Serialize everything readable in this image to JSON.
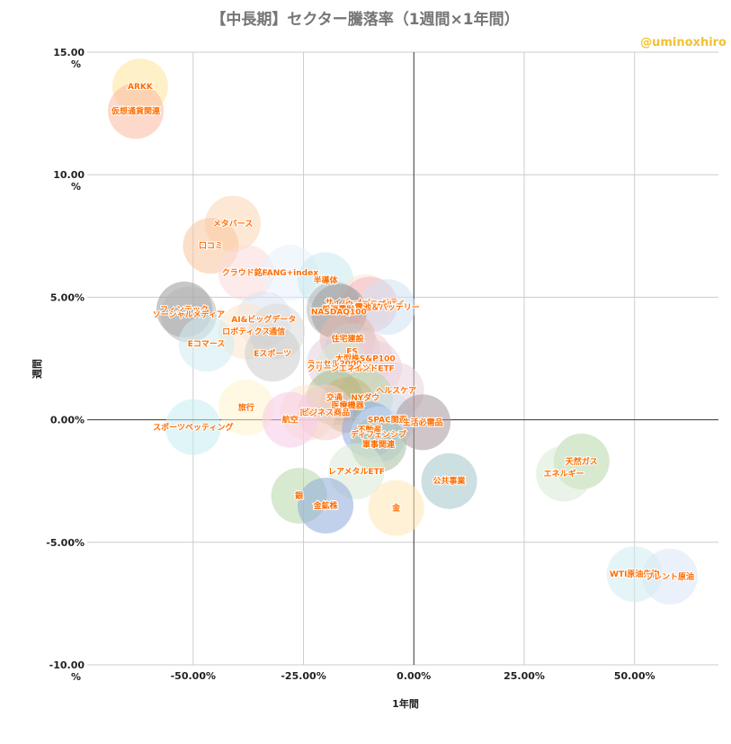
{
  "title": "【中長期】セクター騰落率（1週間×1年間）",
  "handle": "@uminoxhiro",
  "chart_data": {
    "type": "scatter",
    "title": "【中長期】セクター騰落率（1週間×1年間）",
    "xlabel": "1年間",
    "ylabel": "週間",
    "xlim": [
      -0.74,
      0.69
    ],
    "ylim": [
      -0.1,
      0.15
    ],
    "x_ticks": [
      -0.5,
      -0.25,
      0.0,
      0.25,
      0.5
    ],
    "y_ticks": [
      -0.1,
      -0.05,
      0.0,
      0.05,
      0.1,
      0.15
    ],
    "x_tick_labels": [
      "-50.00%",
      "-25.00%",
      "0.00%",
      "25.00%",
      "50.00%"
    ],
    "y_tick_labels": [
      "-10.00\n%",
      "-5.00%",
      "0.00%",
      "5.00%",
      "10.00\n%",
      "15.00\n%"
    ],
    "grid": true,
    "legend": "none",
    "points": [
      {
        "label": "ARKK",
        "x": -0.62,
        "y": 0.136,
        "color": "#ffe599"
      },
      {
        "label": "仮想通貨関連",
        "x": -0.63,
        "y": 0.126,
        "color": "#f9b9a0"
      },
      {
        "label": "メタバース",
        "x": -0.41,
        "y": 0.08,
        "color": "#fcd5b5"
      },
      {
        "label": "口コミ",
        "x": -0.46,
        "y": 0.071,
        "color": "#f9c59a"
      },
      {
        "label": "クラウド銘柄",
        "x": -0.38,
        "y": 0.06,
        "color": "#fadbd8"
      },
      {
        "label": "FANG+index",
        "x": -0.28,
        "y": 0.06,
        "color": "#e8f1fb"
      },
      {
        "label": "半導体",
        "x": -0.2,
        "y": 0.057,
        "color": "#c9e9ec"
      },
      {
        "label": "サイバーセキュリティ",
        "x": -0.11,
        "y": 0.048,
        "color": "#fce5cd"
      },
      {
        "label": "ウェアラブル",
        "x": -0.1,
        "y": 0.047,
        "color": "#f4b7c8"
      },
      {
        "label": "電池＆バッテリー",
        "x": -0.06,
        "y": 0.046,
        "color": "#cfe2f3"
      },
      {
        "label": "一般消費財",
        "x": -0.18,
        "y": 0.045,
        "color": "#b7b7b7"
      },
      {
        "label": "NASDAQ100",
        "x": -0.17,
        "y": 0.044,
        "color": "#9e9e9e"
      },
      {
        "label": "フィンテック",
        "x": -0.52,
        "y": 0.045,
        "color": "#999999"
      },
      {
        "label": "ソーシャルメディア",
        "x": -0.51,
        "y": 0.043,
        "color": "#b7b7b7"
      },
      {
        "label": "AI&ビッグデータ",
        "x": -0.34,
        "y": 0.041,
        "color": "#d9e1f2"
      },
      {
        "label": "ロボティクス",
        "x": -0.38,
        "y": 0.036,
        "color": "#fce5cd"
      },
      {
        "label": "通信",
        "x": -0.31,
        "y": 0.036,
        "color": "#d9d9d9"
      },
      {
        "label": "住宅建設",
        "x": -0.15,
        "y": 0.033,
        "color": "#e6b8af"
      },
      {
        "label": "Eコマース",
        "x": -0.47,
        "y": 0.031,
        "color": "#d0ecf0"
      },
      {
        "label": "Eスポーツ",
        "x": -0.32,
        "y": 0.027,
        "color": "#cccccc"
      },
      {
        "label": "ES",
        "x": -0.14,
        "y": 0.028,
        "color": "#c9c9c9"
      },
      {
        "label": "大型株S&P100",
        "x": -0.11,
        "y": 0.025,
        "color": "#f4cccc"
      },
      {
        "label": "ラッセル2000",
        "x": -0.18,
        "y": 0.023,
        "color": "#e6d0de"
      },
      {
        "label": "クリーンエネルギー",
        "x": -0.16,
        "y": 0.021,
        "color": "#d9ead3"
      },
      {
        "label": "インドETF",
        "x": -0.09,
        "y": 0.021,
        "color": "#ead1dc"
      },
      {
        "label": "ヘルスケア",
        "x": -0.04,
        "y": 0.012,
        "color": "#ead1dc"
      },
      {
        "label": "NYダウ",
        "x": -0.11,
        "y": 0.009,
        "color": "#b6d7a8"
      },
      {
        "label": "交通",
        "x": -0.18,
        "y": 0.009,
        "color": "#a4b98d"
      },
      {
        "label": "医療機器",
        "x": -0.15,
        "y": 0.006,
        "color": "#c9b27a"
      },
      {
        "label": "旅行",
        "x": -0.38,
        "y": 0.005,
        "color": "#fff2cc"
      },
      {
        "label": "鉄鋼",
        "x": -0.24,
        "y": 0.003,
        "color": "#fce5cd"
      },
      {
        "label": "ビジネス商品",
        "x": -0.2,
        "y": 0.003,
        "color": "#f4cccc"
      },
      {
        "label": "SPAC関連",
        "x": -0.06,
        "y": 0.0,
        "color": "#cfe2f3"
      },
      {
        "label": "生活必需品",
        "x": 0.02,
        "y": -0.001,
        "color": "#a7979c"
      },
      {
        "label": "航空",
        "x": -0.28,
        "y": 0.0,
        "color": "#f8cbe8"
      },
      {
        "label": "スポーツベッティング",
        "x": -0.5,
        "y": -0.003,
        "color": "#c7ecf3"
      },
      {
        "label": "不動産",
        "x": -0.1,
        "y": -0.004,
        "color": "#8eaadb"
      },
      {
        "label": "ディフェンシブ",
        "x": -0.08,
        "y": -0.006,
        "color": "#c9daf8"
      },
      {
        "label": "軍事関連",
        "x": -0.08,
        "y": -0.01,
        "color": "#a8bfa0"
      },
      {
        "label": "レアメタルETF",
        "x": -0.13,
        "y": -0.021,
        "color": "#d9ead3"
      },
      {
        "label": "公共事業",
        "x": 0.08,
        "y": -0.025,
        "color": "#a2c4c9"
      },
      {
        "label": "天然ガス",
        "x": 0.38,
        "y": -0.017,
        "color": "#b6d7a8"
      },
      {
        "label": "エネルギー",
        "x": 0.34,
        "y": -0.022,
        "color": "#d9ead3"
      },
      {
        "label": "銀",
        "x": -0.26,
        "y": -0.031,
        "color": "#b6d7a8"
      },
      {
        "label": "金鉱株",
        "x": -0.2,
        "y": -0.035,
        "color": "#8ea9db"
      },
      {
        "label": "金",
        "x": -0.04,
        "y": -0.036,
        "color": "#ffe5b4"
      },
      {
        "label": "WTI原油先物",
        "x": 0.5,
        "y": -0.063,
        "color": "#d0ecf0"
      },
      {
        "label": "ブレント原油",
        "x": 0.58,
        "y": -0.064,
        "color": "#dbe5f6"
      }
    ]
  }
}
